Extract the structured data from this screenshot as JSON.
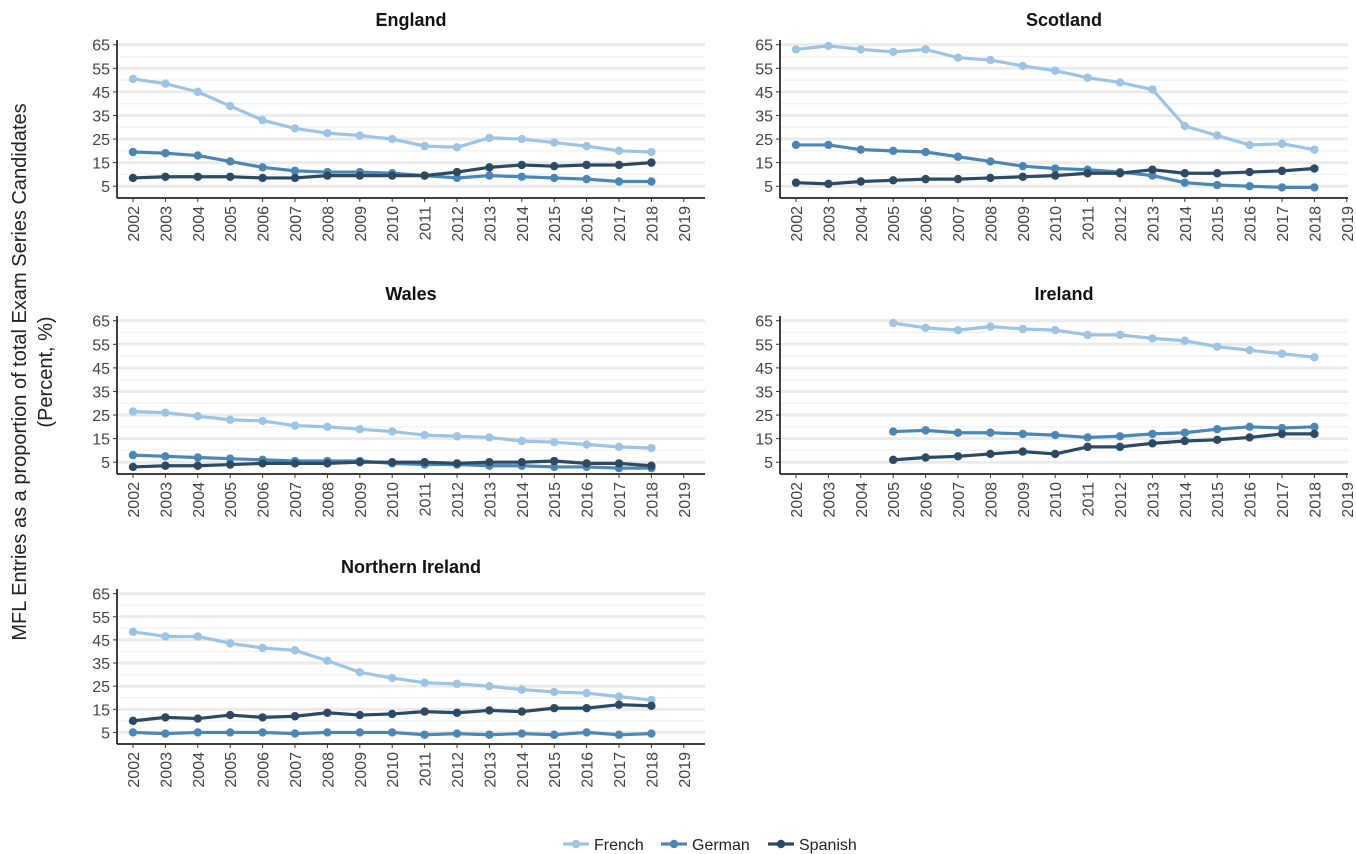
{
  "chart_data": {
    "type": "line",
    "ylabel_line1": "MFL Entries as a proportion of total Exam Series Candidates",
    "ylabel_line2": "(Percent, %)",
    "x_ticks": [
      2002,
      2003,
      2004,
      2005,
      2006,
      2007,
      2008,
      2009,
      2010,
      2011,
      2012,
      2013,
      2014,
      2015,
      2016,
      2017,
      2018,
      2019
    ],
    "y_ticks": [
      5,
      15,
      25,
      35,
      45,
      55,
      65
    ],
    "xlim": [
      2002,
      2019
    ],
    "ylim": [
      0,
      67
    ],
    "grid": "horizontal",
    "legend_position": "bottom",
    "colors": {
      "French": "#9ec4e3",
      "German": "#4b87b6",
      "Spanish": "#2c4a63"
    },
    "panels": [
      {
        "title": "England",
        "x": [
          2002,
          2003,
          2004,
          2005,
          2006,
          2007,
          2008,
          2009,
          2010,
          2011,
          2012,
          2013,
          2014,
          2015,
          2016,
          2017,
          2018
        ],
        "series": [
          {
            "name": "French",
            "values": [
              50.5,
              48.5,
              45,
              39,
              33,
              29.5,
              27.5,
              26.5,
              25,
              22,
              21.5,
              25.5,
              25,
              23.5,
              22,
              20,
              19.5
            ]
          },
          {
            "name": "German",
            "values": [
              19.5,
              19,
              18,
              15.5,
              13,
              11.5,
              11,
              11,
              10.5,
              9.5,
              8.5,
              9.5,
              9,
              8.5,
              8,
              7,
              7
            ]
          },
          {
            "name": "Spanish",
            "values": [
              8.5,
              9,
              9,
              9,
              8.5,
              8.5,
              9.5,
              9.5,
              9.5,
              9.5,
              11,
              13,
              14,
              13.5,
              14,
              14,
              15
            ]
          }
        ]
      },
      {
        "title": "Scotland",
        "x": [
          2002,
          2003,
          2004,
          2005,
          2006,
          2007,
          2008,
          2009,
          2010,
          2011,
          2012,
          2013,
          2014,
          2015,
          2016,
          2017,
          2018
        ],
        "series": [
          {
            "name": "French",
            "values": [
              63,
              64.5,
              63,
              62,
              63,
              59.5,
              58.5,
              56,
              54,
              51,
              49,
              46,
              30.5,
              26.5,
              22.5,
              23,
              20.5
            ]
          },
          {
            "name": "German",
            "values": [
              22.5,
              22.5,
              20.5,
              20,
              19.5,
              17.5,
              15.5,
              13.5,
              12.5,
              12,
              11,
              9.5,
              6.5,
              5.5,
              5,
              4.5,
              4.5
            ]
          },
          {
            "name": "Spanish",
            "values": [
              6.5,
              6,
              7,
              7.5,
              8,
              8,
              8.5,
              9,
              9.5,
              10.5,
              10.5,
              12,
              10.5,
              10.5,
              11,
              11.5,
              12.5
            ]
          }
        ]
      },
      {
        "title": "Wales",
        "x": [
          2002,
          2003,
          2004,
          2005,
          2006,
          2007,
          2008,
          2009,
          2010,
          2011,
          2012,
          2013,
          2014,
          2015,
          2016,
          2017,
          2018
        ],
        "series": [
          {
            "name": "French",
            "values": [
              26.5,
              26,
              24.5,
              23,
              22.5,
              20.5,
              20,
              19,
              18,
              16.5,
              16,
              15.5,
              14,
              13.5,
              12.5,
              11.5,
              11
            ]
          },
          {
            "name": "German",
            "values": [
              8,
              7.5,
              7,
              6.5,
              6,
              5.5,
              5.5,
              5.5,
              4.5,
              4,
              4,
              3.5,
              3.5,
              3,
              3,
              2.5,
              2.5
            ]
          },
          {
            "name": "Spanish",
            "values": [
              3,
              3.5,
              3.5,
              4,
              4.5,
              4.5,
              4.5,
              5,
              5,
              5,
              4.5,
              5,
              5,
              5.5,
              4.5,
              4.5,
              3.5
            ]
          }
        ]
      },
      {
        "title": "Ireland",
        "x": [
          2005,
          2006,
          2007,
          2008,
          2009,
          2010,
          2011,
          2012,
          2013,
          2014,
          2015,
          2016,
          2017,
          2018
        ],
        "series": [
          {
            "name": "French",
            "values": [
              64,
              62,
              61,
              62.5,
              61.5,
              61,
              59,
              59,
              57.5,
              56.5,
              54,
              52.5,
              51,
              49.5
            ]
          },
          {
            "name": "German",
            "values": [
              18,
              18.5,
              17.5,
              17.5,
              17,
              16.5,
              15.5,
              16,
              17,
              17.5,
              19,
              20,
              19.5,
              20
            ]
          },
          {
            "name": "Spanish",
            "values": [
              6,
              7,
              7.5,
              8.5,
              9.5,
              8.5,
              11.5,
              11.5,
              13,
              14,
              14.5,
              15.5,
              17,
              17
            ]
          }
        ]
      },
      {
        "title": "Northern Ireland",
        "x": [
          2002,
          2003,
          2004,
          2005,
          2006,
          2007,
          2008,
          2009,
          2010,
          2011,
          2012,
          2013,
          2014,
          2015,
          2016,
          2017,
          2018
        ],
        "series": [
          {
            "name": "French",
            "values": [
              48.5,
              46.5,
              46.5,
              43.5,
              41.5,
              40.5,
              36,
              31,
              28.5,
              26.5,
              26,
              25,
              23.5,
              22.5,
              22,
              20.5,
              19
            ]
          },
          {
            "name": "German",
            "values": [
              5,
              4.5,
              5,
              5,
              5,
              4.5,
              5,
              5,
              5,
              4,
              4.5,
              4,
              4.5,
              4,
              5,
              4,
              4.5
            ]
          },
          {
            "name": "Spanish",
            "values": [
              10,
              11.5,
              11,
              12.5,
              11.5,
              12,
              13.5,
              12.5,
              13,
              14,
              13.5,
              14.5,
              14,
              15.5,
              15.5,
              17,
              16.5
            ]
          }
        ]
      }
    ],
    "legend": [
      "French",
      "German",
      "Spanish"
    ]
  }
}
